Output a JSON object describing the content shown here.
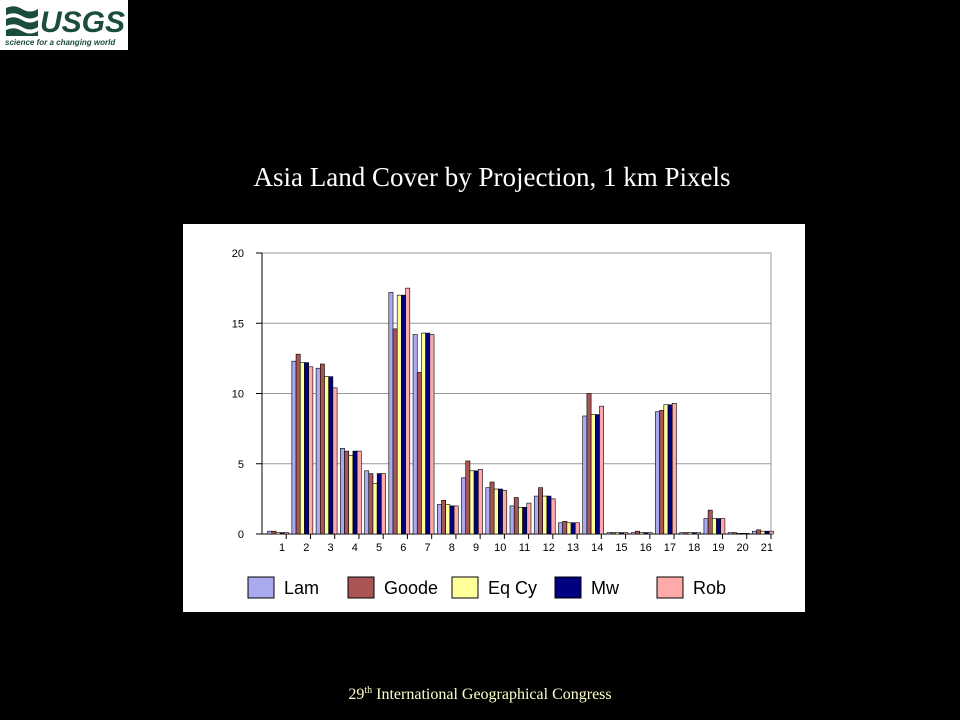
{
  "logo": {
    "name": "USGS",
    "tagline": "science for a changing world"
  },
  "footer": {
    "number": "29",
    "suffix": "th",
    "text": " International Geographical Congress"
  },
  "chart_data": {
    "type": "bar",
    "title": "Asia Land Cover by Projection, 1 km Pixels",
    "categories": [
      "1",
      "2",
      "3",
      "4",
      "5",
      "6",
      "7",
      "8",
      "9",
      "10",
      "11",
      "12",
      "13",
      "14",
      "15",
      "16",
      "17",
      "18",
      "19",
      "20",
      "21"
    ],
    "series": [
      {
        "name": "Lam",
        "color": "#aaaaee",
        "values": [
          0.2,
          12.3,
          11.8,
          6.1,
          4.5,
          17.2,
          14.2,
          2.1,
          4.0,
          3.3,
          2.0,
          2.7,
          0.8,
          8.4,
          0.1,
          0.1,
          8.7,
          0.1,
          1.1,
          0.1,
          0.2
        ]
      },
      {
        "name": "Goode",
        "color": "#aa5555",
        "values": [
          0.2,
          12.8,
          12.1,
          5.9,
          4.3,
          14.6,
          11.5,
          2.4,
          5.2,
          3.7,
          2.6,
          3.3,
          0.9,
          10.0,
          0.1,
          0.2,
          8.8,
          0.1,
          1.7,
          0.1,
          0.3
        ]
      },
      {
        "name": "Eq Cy",
        "color": "#ffff99",
        "values": [
          0.1,
          12.2,
          11.2,
          5.6,
          3.6,
          17.0,
          14.3,
          2.1,
          4.5,
          3.2,
          1.9,
          2.7,
          0.8,
          8.5,
          0.1,
          0.1,
          9.2,
          0.1,
          1.1,
          0.05,
          0.2
        ]
      },
      {
        "name": "Mw",
        "color": "#000080",
        "values": [
          0.1,
          12.2,
          11.2,
          5.9,
          4.3,
          17.0,
          14.3,
          2.0,
          4.5,
          3.2,
          1.9,
          2.7,
          0.8,
          8.5,
          0.1,
          0.1,
          9.2,
          0.1,
          1.1,
          0.05,
          0.2
        ]
      },
      {
        "name": "Rob",
        "color": "#ffaaaa",
        "values": [
          0.1,
          11.9,
          10.4,
          5.9,
          4.3,
          17.5,
          14.2,
          2.0,
          4.6,
          3.1,
          2.2,
          2.5,
          0.8,
          9.1,
          0.1,
          0.1,
          9.3,
          0.1,
          1.1,
          0.05,
          0.2
        ]
      }
    ],
    "ylim": [
      0,
      20
    ],
    "yticks": [
      0,
      5,
      10,
      15,
      20
    ],
    "grid": true
  }
}
